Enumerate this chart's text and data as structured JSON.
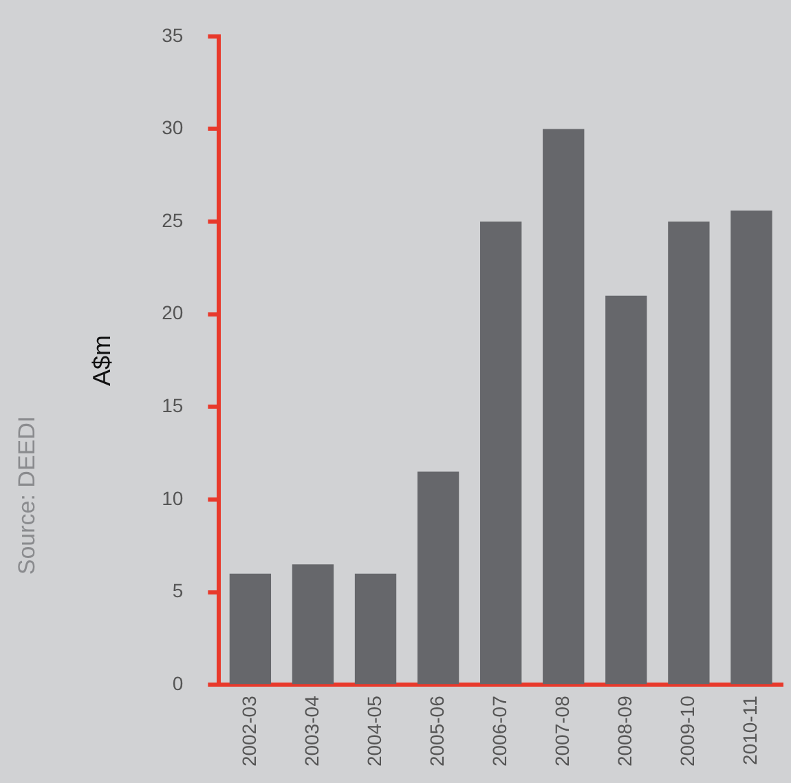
{
  "chart_data": {
    "type": "bar",
    "ylabel": "A$m",
    "categories": [
      "2002-03",
      "2003-04",
      "2004-05",
      "2005-06",
      "2006-07",
      "2007-08",
      "2008-09",
      "2009-10",
      "2010-11"
    ],
    "values": [
      6,
      6.5,
      6,
      11.5,
      25,
      30,
      21,
      25,
      25.6
    ],
    "color": "#66676b",
    "ylim": [
      0,
      35
    ],
    "yticks": [
      0,
      5,
      10,
      15,
      20,
      25,
      30,
      35
    ],
    "grid": false,
    "legend": false,
    "annotations": [
      "Source: DEEDI"
    ]
  }
}
